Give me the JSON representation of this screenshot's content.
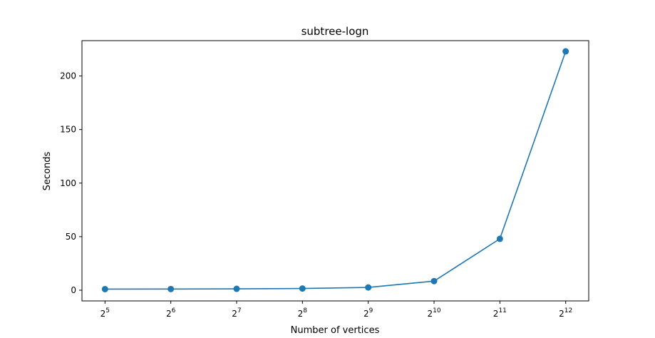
{
  "chart_data": {
    "type": "line",
    "title": "subtree-logn",
    "xlabel": "Number of vertices",
    "ylabel": "Seconds",
    "x_scale": "log2",
    "x": [
      32,
      64,
      128,
      256,
      512,
      1024,
      2048,
      4096
    ],
    "x_tick_base": "2",
    "x_tick_exponents": [
      "5",
      "6",
      "7",
      "8",
      "9",
      "10",
      "11",
      "12"
    ],
    "y_ticks": [
      "0",
      "50",
      "100",
      "150",
      "200"
    ],
    "ylim": [
      -10,
      233
    ],
    "grid": false,
    "series": [
      {
        "values": [
          1.0,
          1.1,
          1.3,
          1.6,
          2.6,
          8.5,
          48.0,
          223.0
        ],
        "color": "#1f77b4",
        "marker": "circle"
      }
    ]
  }
}
